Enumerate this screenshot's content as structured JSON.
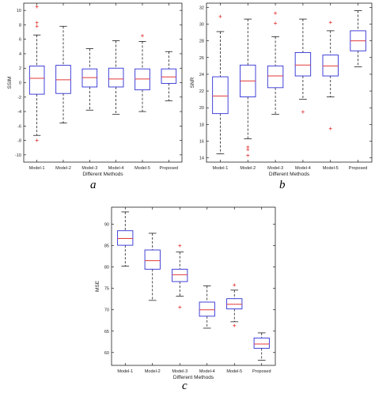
{
  "chart_data": [
    {
      "type": "box",
      "letter": "a",
      "xlabel": "Different Methods",
      "ylabel": "SSIM",
      "categories": [
        "Model-1",
        "Model-2",
        "Model-3",
        "Model-4",
        "Model-5",
        "Proposed"
      ],
      "ylim": [
        -11,
        11
      ],
      "yticks": [
        -10,
        -8,
        -6,
        -4,
        -2,
        0,
        2,
        4,
        6,
        8,
        10
      ],
      "grid": false,
      "series": [
        {
          "min": -7.3,
          "q1": -1.6,
          "median": 0.6,
          "q3": 2.3,
          "max": 6.6,
          "outliers": [
            10.5,
            8.3,
            7.8,
            -8.0
          ]
        },
        {
          "min": -5.6,
          "q1": -1.5,
          "median": 0.4,
          "q3": 2.4,
          "max": 7.8,
          "outliers": []
        },
        {
          "min": -3.8,
          "q1": -0.6,
          "median": 0.7,
          "q3": 1.9,
          "max": 4.7,
          "outliers": []
        },
        {
          "min": -4.4,
          "q1": -0.6,
          "median": 0.5,
          "q3": 2.0,
          "max": 5.8,
          "outliers": []
        },
        {
          "min": -4.0,
          "q1": -1.0,
          "median": 0.5,
          "q3": 1.9,
          "max": 5.7,
          "outliers": [
            6.5
          ]
        },
        {
          "min": -2.5,
          "q1": -0.1,
          "median": 0.8,
          "q3": 1.9,
          "max": 4.3,
          "outliers": []
        }
      ]
    },
    {
      "type": "box",
      "letter": "b",
      "xlabel": "Different Methods",
      "ylabel": "SNR",
      "categories": [
        "Model-1",
        "Model-2",
        "Model-3",
        "Model-4",
        "Model-5",
        "Proposed"
      ],
      "ylim": [
        13.5,
        32.5
      ],
      "yticks": [
        14,
        16,
        18,
        20,
        22,
        24,
        26,
        28,
        30,
        32
      ],
      "grid": false,
      "series": [
        {
          "min": 14.5,
          "q1": 19.3,
          "median": 21.4,
          "q3": 23.7,
          "max": 29.1,
          "outliers": [
            30.9
          ]
        },
        {
          "min": 16.3,
          "q1": 21.3,
          "median": 23.2,
          "q3": 25.1,
          "max": 30.6,
          "outliers": [
            15.3,
            15.0,
            14.3
          ]
        },
        {
          "min": 19.2,
          "q1": 22.4,
          "median": 23.8,
          "q3": 25.0,
          "max": 28.5,
          "outliers": [
            31.3,
            30.1
          ]
        },
        {
          "min": 21.0,
          "q1": 23.8,
          "median": 25.1,
          "q3": 26.6,
          "max": 30.6,
          "outliers": [
            19.5
          ]
        },
        {
          "min": 21.3,
          "q1": 23.8,
          "median": 25.0,
          "q3": 26.3,
          "max": 29.2,
          "outliers": [
            30.2,
            17.5
          ]
        },
        {
          "min": 24.9,
          "q1": 26.8,
          "median": 28.0,
          "q3": 29.2,
          "max": 31.6,
          "outliers": []
        }
      ]
    },
    {
      "type": "box",
      "letter": "c",
      "xlabel": "Different Methods",
      "ylabel": "MSE",
      "categories": [
        "Model-1",
        "Model-2",
        "Model-3",
        "Model-4",
        "Model-5",
        "Proposed"
      ],
      "ylim": [
        57,
        94
      ],
      "yticks": [
        60,
        65,
        70,
        75,
        80,
        85,
        90
      ],
      "grid": false,
      "series": [
        {
          "min": 80.2,
          "q1": 85.1,
          "median": 86.7,
          "q3": 88.5,
          "max": 92.9,
          "outliers": []
        },
        {
          "min": 72.2,
          "q1": 79.5,
          "median": 81.5,
          "q3": 84.0,
          "max": 87.9,
          "outliers": []
        },
        {
          "min": 73.2,
          "q1": 76.6,
          "median": 78.2,
          "q3": 79.5,
          "max": 83.5,
          "outliers": [
            85.0,
            70.6
          ]
        },
        {
          "min": 65.7,
          "q1": 68.5,
          "median": 70.0,
          "q3": 71.8,
          "max": 75.6,
          "outliers": []
        },
        {
          "min": 67.2,
          "q1": 70.2,
          "median": 71.3,
          "q3": 72.6,
          "max": 74.6,
          "outliers": [
            75.8,
            66.3
          ]
        },
        {
          "min": 58.2,
          "q1": 61.0,
          "median": 62.0,
          "q3": 63.4,
          "max": 64.6,
          "outliers": []
        }
      ]
    }
  ],
  "colors": {
    "box": "#2f2fd6",
    "median": "#e33a3a",
    "outlier": "#e33a3a",
    "whisker": "#000000",
    "axis": "#000000"
  }
}
